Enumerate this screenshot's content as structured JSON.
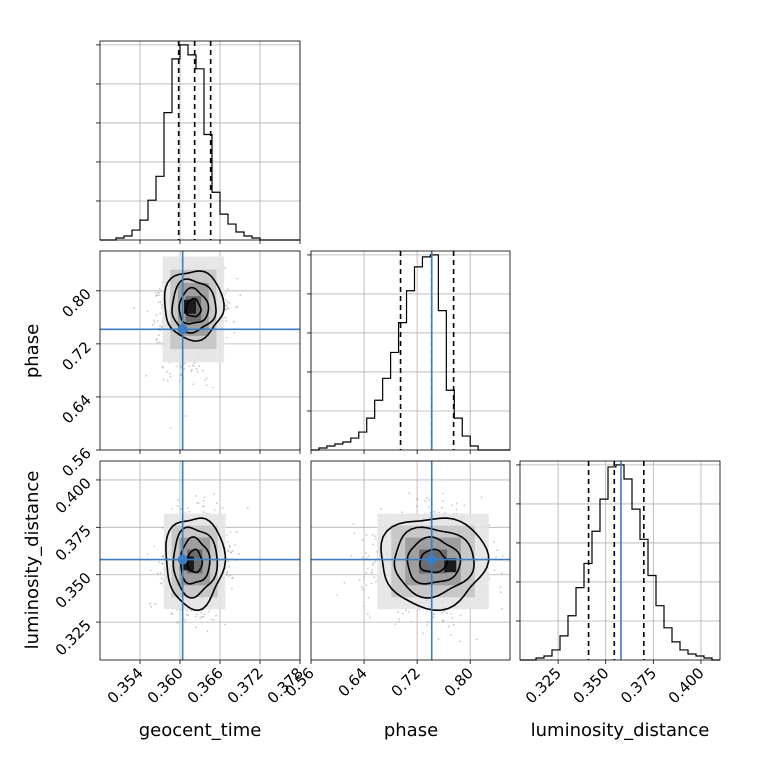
{
  "chart_data": {
    "type": "corner",
    "grid": true,
    "truth_color": "#3b7cc2",
    "parameters": [
      {
        "name": "geocent_time",
        "label": "geocent_time",
        "range": [
          0.348,
          0.378
        ],
        "ticks": [
          0.354,
          0.36,
          0.366,
          0.372,
          0.378
        ],
        "tick_labels": [
          "0.354",
          "0.360",
          "0.366",
          "0.372",
          "0.378"
        ],
        "truth": 0.3604,
        "quantiles": [
          0.3598,
          0.3622,
          0.3646
        ]
      },
      {
        "name": "phase",
        "label": "phase",
        "range": [
          0.56,
          0.86
        ],
        "ticks": [
          0.56,
          0.64,
          0.72,
          0.8
        ],
        "tick_labels": [
          "0.56",
          "0.64",
          "0.72",
          "0.80"
        ],
        "truth": 0.742,
        "quantiles": [
          0.695,
          0.742,
          0.775
        ]
      },
      {
        "name": "luminosity_distance",
        "label": "luminosity_distance",
        "range": [
          0.305,
          0.41
        ],
        "ticks": [
          0.325,
          0.35,
          0.375,
          0.4
        ],
        "tick_labels": [
          "0.325",
          "0.350",
          "0.375",
          "0.400"
        ],
        "truth": 0.358,
        "quantiles": [
          0.341,
          0.3545,
          0.37
        ]
      }
    ],
    "histograms": [
      {
        "param": "geocent_time",
        "bin_start": 0.348,
        "bin_width": 0.0012,
        "counts": [
          0,
          0,
          1,
          2,
          5,
          10,
          20,
          32,
          64,
          91,
          98,
          93,
          86,
          53,
          24,
          13,
          8,
          4,
          2,
          1,
          0,
          0,
          0,
          0,
          0
        ]
      },
      {
        "param": "phase",
        "bin_start": 0.56,
        "bin_width": 0.012,
        "counts": [
          0,
          1,
          2,
          3,
          4,
          6,
          9,
          16,
          25,
          36,
          49,
          64,
          80,
          92,
          97,
          98,
          70,
          30,
          16,
          7,
          2,
          0,
          0,
          0,
          0
        ]
      },
      {
        "param": "luminosity_distance",
        "bin_start": 0.305,
        "bin_width": 0.0042,
        "counts": [
          0,
          0,
          1,
          2,
          5,
          12,
          22,
          36,
          48,
          64,
          80,
          96,
          97,
          90,
          75,
          60,
          42,
          27,
          16,
          9,
          5,
          3,
          2,
          1,
          0
        ]
      }
    ],
    "pairs": [
      {
        "x": "geocent_time",
        "y": "phase",
        "center": [
          0.362,
          0.772
        ],
        "sigma": [
          0.0022,
          0.038
        ],
        "rho": 0.1,
        "skew": -0.45,
        "peak": [
          0.3615,
          0.776
        ]
      },
      {
        "x": "geocent_time",
        "y": "luminosity_distance",
        "center": [
          0.3622,
          0.357
        ],
        "sigma": [
          0.0022,
          0.012
        ],
        "rho": 0.05,
        "skew": 0.0,
        "peak": [
          0.3612,
          0.356
        ]
      },
      {
        "x": "phase",
        "y": "luminosity_distance",
        "center": [
          0.744,
          0.357
        ],
        "sigma": [
          0.04,
          0.012
        ],
        "rho": 0.0,
        "skew": 0.0,
        "peak": [
          0.77,
          0.355
        ]
      }
    ],
    "contour_levels_sigma": [
      0.5,
      1.0,
      1.5,
      2.0
    ]
  }
}
